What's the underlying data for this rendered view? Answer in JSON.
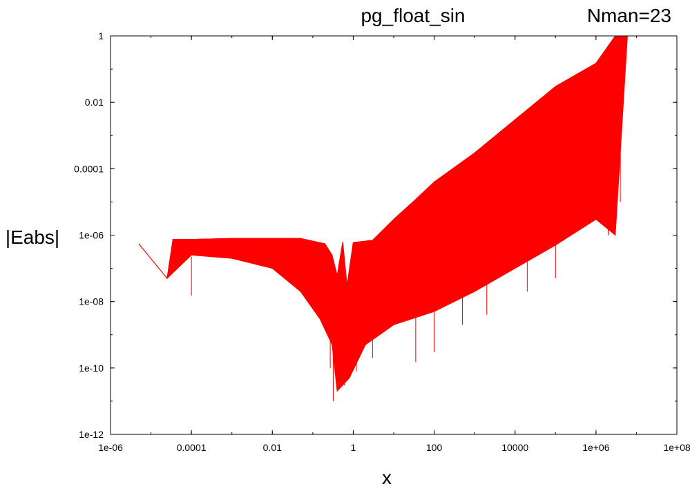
{
  "chart_data": {
    "type": "line",
    "title": "pg_float_sin",
    "subtitle": "Nman=23",
    "xlabel": "x",
    "ylabel": "|Eabs|",
    "x_scale": "log",
    "y_scale": "log",
    "xlim": [
      1e-06,
      100000000.0
    ],
    "ylim": [
      1e-12,
      1
    ],
    "x_ticks": [
      {
        "value": 1e-06,
        "label": "1e-06"
      },
      {
        "value": 0.0001,
        "label": "0.0001"
      },
      {
        "value": 0.01,
        "label": "0.01"
      },
      {
        "value": 1,
        "label": "1"
      },
      {
        "value": 100,
        "label": "100"
      },
      {
        "value": 10000,
        "label": "10000"
      },
      {
        "value": 1000000,
        "label": "1e+06"
      },
      {
        "value": 100000000,
        "label": "1e+08"
      }
    ],
    "y_ticks": [
      {
        "value": 1e-12,
        "label": "1e-12"
      },
      {
        "value": 1e-10,
        "label": "1e-10"
      },
      {
        "value": 1e-08,
        "label": "1e-08"
      },
      {
        "value": 1e-06,
        "label": "1e-06"
      },
      {
        "value": 0.0001,
        "label": "0.0001"
      },
      {
        "value": 0.01,
        "label": "0.01"
      },
      {
        "value": 1,
        "label": "1"
      }
    ],
    "grid": false,
    "series": [
      {
        "color": "#ff0000",
        "upper_envelope": [
          [
            5e-06,
            5.5e-07
          ],
          [
            2.5e-05,
            5e-08
          ],
          [
            3.5e-05,
            7.5e-07
          ],
          [
            0.00012,
            7.5e-07
          ],
          [
            0.001,
            8e-07
          ],
          [
            0.05,
            8e-07
          ],
          [
            0.2,
            5.5e-07
          ],
          [
            0.3,
            2.5e-07
          ],
          [
            0.4,
            6e-08
          ],
          [
            0.55,
            6.2e-07
          ],
          [
            0.7,
            3e-08
          ],
          [
            1,
            6e-07
          ],
          [
            3,
            7e-07
          ],
          [
            10,
            3e-06
          ],
          [
            30,
            1e-05
          ],
          [
            100,
            4e-05
          ],
          [
            1000,
            0.0003
          ],
          [
            10000,
            0.003
          ],
          [
            100000,
            0.03
          ],
          [
            1000000,
            0.15
          ],
          [
            3000000,
            1.0
          ],
          [
            6000000,
            1.0
          ]
        ],
        "lower_envelope": [
          [
            5e-06,
            5.5e-07
          ],
          [
            2.5e-05,
            5e-08
          ],
          [
            0.0001,
            2.5e-07
          ],
          [
            0.001,
            2e-07
          ],
          [
            0.01,
            1e-07
          ],
          [
            0.05,
            2e-08
          ],
          [
            0.15,
            3e-09
          ],
          [
            0.3,
            5e-10
          ],
          [
            0.4,
            2e-11
          ],
          [
            0.8,
            5e-11
          ],
          [
            2,
            5e-10
          ],
          [
            10,
            2e-09
          ],
          [
            100,
            5e-09
          ],
          [
            1000,
            2e-08
          ],
          [
            10000,
            1e-07
          ],
          [
            100000,
            5e-07
          ],
          [
            1000000,
            3e-06
          ],
          [
            3000000,
            1e-06
          ],
          [
            6000000,
            1.0
          ]
        ],
        "spikes": [
          [
            0.0001,
            1.5e-08
          ],
          [
            0.27,
            1e-10
          ],
          [
            0.32,
            1e-11
          ],
          [
            0.6,
            3e-11
          ],
          [
            1.2,
            8e-11
          ],
          [
            3,
            2e-10
          ],
          [
            35,
            1.5e-10
          ],
          [
            100,
            3e-10
          ],
          [
            500,
            2e-09
          ],
          [
            2000,
            4e-09
          ],
          [
            20000,
            2e-08
          ],
          [
            100000,
            5e-08
          ],
          [
            2000000,
            1e-06
          ],
          [
            4000000,
            1e-05
          ]
        ]
      }
    ]
  }
}
